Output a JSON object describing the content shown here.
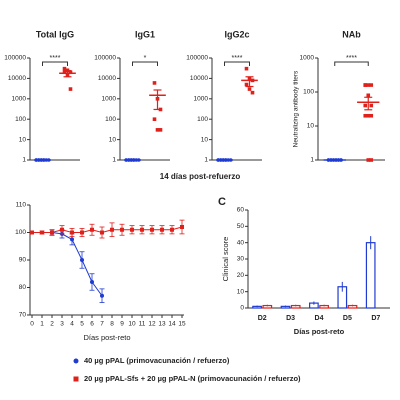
{
  "chart_data": [
    {
      "type": "strip",
      "title": "Total IgG",
      "log_y": true,
      "ylim": [
        1,
        100000
      ],
      "yticks": [
        1,
        10,
        100,
        1000,
        10000,
        100000
      ],
      "significance": "****",
      "series": [
        {
          "color": "#1f3bd1",
          "marker": "circle",
          "values": [
            1,
            1,
            1,
            1,
            1,
            1,
            1,
            1,
            1,
            1
          ],
          "mean": 1,
          "error": 0
        },
        {
          "color": "#e0201b",
          "marker": "square",
          "values": [
            30000,
            25000,
            20000,
            20000,
            15000,
            3000
          ],
          "mean": 18000,
          "error": 6000
        }
      ]
    },
    {
      "type": "strip",
      "title": "IgG1",
      "log_y": true,
      "ylim": [
        1,
        100000
      ],
      "yticks": [
        1,
        10,
        100,
        1000,
        10000,
        100000
      ],
      "significance": "*",
      "series": [
        {
          "color": "#1f3bd1",
          "marker": "circle",
          "values": [
            1,
            1,
            1,
            1,
            1,
            1,
            1,
            1,
            1,
            1
          ],
          "mean": 1,
          "error": 0
        },
        {
          "color": "#e0201b",
          "marker": "square",
          "values": [
            6000,
            1000,
            300,
            100,
            30,
            30
          ],
          "mean": 1500,
          "error": 1200
        }
      ]
    },
    {
      "type": "strip",
      "title": "IgG2c",
      "log_y": true,
      "ylim": [
        1,
        100000
      ],
      "yticks": [
        1,
        10,
        100,
        1000,
        10000,
        100000
      ],
      "significance": "****",
      "series": [
        {
          "color": "#1f3bd1",
          "marker": "circle",
          "values": [
            1,
            1,
            1,
            1,
            1,
            1,
            1,
            1,
            1,
            1
          ],
          "mean": 1,
          "error": 0
        },
        {
          "color": "#e0201b",
          "marker": "square",
          "values": [
            30000,
            10000,
            8000,
            5000,
            3000,
            2000
          ],
          "mean": 8000,
          "error": 4000
        }
      ]
    },
    {
      "type": "strip",
      "title": "NAb",
      "ylabel": "Neutralizing antibody  titers",
      "log_y": true,
      "ylim": [
        1,
        1000
      ],
      "yticks": [
        1,
        10,
        100,
        1000
      ],
      "significance": "****",
      "series": [
        {
          "color": "#1f3bd1",
          "marker": "circle",
          "values": [
            1,
            1,
            1,
            1,
            1,
            1,
            1,
            1,
            1,
            1,
            1,
            1
          ],
          "mean": 1,
          "error": 0
        },
        {
          "color": "#e0201b",
          "marker": "square",
          "values": [
            160,
            160,
            160,
            160,
            80,
            40,
            40,
            20,
            20,
            20,
            1,
            1
          ],
          "mean": 50,
          "error": 20
        }
      ]
    },
    {
      "type": "line",
      "xlabel": "Días post-reto",
      "xlim": [
        0,
        15
      ],
      "xticks": [
        0,
        1,
        2,
        3,
        4,
        5,
        6,
        7,
        8,
        9,
        10,
        11,
        12,
        13,
        14,
        15
      ],
      "ylim": [
        70,
        110
      ],
      "yticks": [
        70,
        80,
        90,
        100,
        110
      ],
      "x": [
        0,
        1,
        2,
        3,
        4,
        5,
        6,
        7,
        8,
        9,
        10,
        11,
        12,
        13,
        14,
        15
      ],
      "series": [
        {
          "name": "40 µg pPAL (primovacunación / refuerzo)",
          "color": "#1f3bd1",
          "marker": "circle",
          "values": [
            100,
            100,
            100,
            99.5,
            97.5,
            90,
            82,
            77,
            null,
            null,
            null,
            null,
            null,
            null,
            null,
            null
          ],
          "errors": [
            0,
            0.5,
            1,
            1.5,
            2,
            3,
            3,
            2.5,
            null,
            null,
            null,
            null,
            null,
            null,
            null,
            null
          ]
        },
        {
          "name": "20 µg pPAL-Sfs + 20 µg pPAL-N (primovacunación / refuerzo)",
          "color": "#e0201b",
          "marker": "square",
          "values": [
            100,
            100,
            100,
            101,
            100,
            100,
            101,
            100,
            101,
            101,
            101,
            101,
            101,
            101,
            101,
            102
          ],
          "errors": [
            0,
            0.5,
            1,
            1.5,
            1.5,
            1.5,
            2,
            2,
            2.5,
            2,
            1.5,
            1.5,
            1.5,
            1.5,
            1.5,
            2.5
          ]
        }
      ]
    },
    {
      "type": "bar",
      "panel_label": "C",
      "ylabel": "Clinical score",
      "xlabel": "Días post-reto",
      "categories": [
        "D2",
        "D3",
        "D4",
        "D5",
        "D7"
      ],
      "ylim": [
        0,
        60
      ],
      "yticks": [
        0,
        10,
        20,
        30,
        40,
        50,
        60
      ],
      "series": [
        {
          "color": "#1f3bd1",
          "values": [
            1,
            1,
            3,
            13,
            40
          ],
          "errors": [
            0.5,
            0.5,
            1,
            3,
            4
          ]
        },
        {
          "color": "#e0201b",
          "values": [
            1.5,
            1.5,
            1.5,
            1.5,
            0
          ],
          "errors": [
            0.5,
            0.5,
            0.5,
            0.5,
            0
          ]
        }
      ]
    }
  ],
  "shared_xlabel": "14 días post-refuerzo"
}
